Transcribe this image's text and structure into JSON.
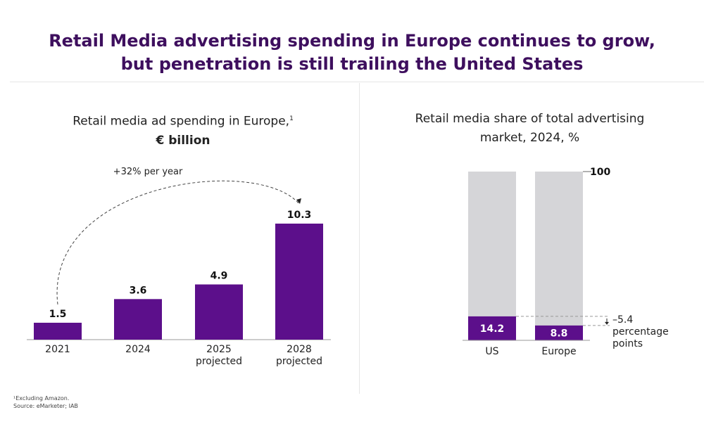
{
  "title_line1": "Retail Media advertising spending in Europe continues to grow,",
  "title_line2": "but penetration is still trailing the United States",
  "colors": {
    "accent": "#5c0f8b",
    "title": "#3e0f5e",
    "remainder": "#d5d5d8"
  },
  "chart_data": [
    {
      "type": "bar",
      "title": "Retail media ad spending in Europe,",
      "title_sup": "1",
      "subtitle": "€ billion",
      "categories": [
        "2021",
        "2024",
        "2025 projected",
        "2028 projected"
      ],
      "category_lines": [
        [
          "2021"
        ],
        [
          "2024"
        ],
        [
          "2025",
          "projected"
        ],
        [
          "2028",
          "projected"
        ]
      ],
      "values": [
        1.5,
        3.6,
        4.9,
        10.3
      ],
      "value_labels": [
        "1.5",
        "3.6",
        "4.9",
        "10.3"
      ],
      "annotation": "+32% per year",
      "ylim": [
        0,
        10.3
      ]
    },
    {
      "type": "bar",
      "stacked": true,
      "title": "Retail media share of total advertising",
      "subtitle": "market, 2024, %",
      "categories": [
        "US",
        "Europe"
      ],
      "values": [
        14.2,
        8.8
      ],
      "value_labels": [
        "14.2",
        "8.8"
      ],
      "total": 100,
      "total_label": "100",
      "difference_label": "–5.4",
      "difference_text": [
        "percentage",
        "points"
      ]
    }
  ],
  "footnote": "¹Excluding Amazon.",
  "source": "Source: eMarketer; IAB"
}
